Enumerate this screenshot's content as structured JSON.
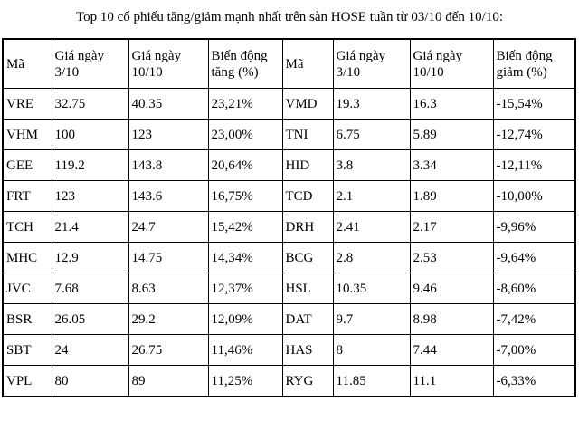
{
  "title": "Top 10 cổ phiếu tăng/giảm mạnh nhất trên sàn HOSE tuần từ 03/10 đến 10/10:",
  "table": {
    "headers": [
      "Mã",
      "Giá ngày 3/10",
      "Giá ngày 10/10",
      "Biến động tăng (%)",
      "Mã",
      "Giá ngày 3/10",
      "Giá ngày 10/10",
      "Biến động giảm (%)"
    ],
    "rows": [
      [
        "VRE",
        "32.75",
        "40.35",
        "23,21%",
        "VMD",
        "19.3",
        "16.3",
        "-15,54%"
      ],
      [
        "VHM",
        "100",
        "123",
        "23,00%",
        "TNI",
        "6.75",
        "5.89",
        "-12,74%"
      ],
      [
        "GEE",
        "119.2",
        "143.8",
        "20,64%",
        "HID",
        "3.8",
        "3.34",
        "-12,11%"
      ],
      [
        "FRT",
        "123",
        "143.6",
        "16,75%",
        "TCD",
        "2.1",
        "1.89",
        "-10,00%"
      ],
      [
        "TCH",
        "21.4",
        "24.7",
        "15,42%",
        "DRH",
        "2.41",
        "2.17",
        "-9,96%"
      ],
      [
        "MHC",
        "12.9",
        "14.75",
        "14,34%",
        "BCG",
        "2.8",
        "2.53",
        "-9,64%"
      ],
      [
        "JVC",
        "7.68",
        "8.63",
        "12,37%",
        "HSL",
        "10.35",
        "9.46",
        "-8,60%"
      ],
      [
        "BSR",
        "26.05",
        "29.2",
        "12,09%",
        "DAT",
        "9.7",
        "8.98",
        "-7,42%"
      ],
      [
        "SBT",
        "24",
        "26.75",
        "11,46%",
        "HAS",
        "8",
        "7.44",
        "-7,00%"
      ],
      [
        "VPL",
        "80",
        "89",
        "11,25%",
        "RYG",
        "11.85",
        "11.1",
        "-6,33%"
      ]
    ],
    "column_names": [
      "gainer-code-cell",
      "gainer-price-0310-cell",
      "gainer-price-1010-cell",
      "gainer-change-cell",
      "loser-code-cell",
      "loser-price-0310-cell",
      "loser-price-1010-cell",
      "loser-change-cell"
    ]
  },
  "colors": {
    "background": "#ffffff",
    "text": "#000000",
    "border": "#000000"
  }
}
